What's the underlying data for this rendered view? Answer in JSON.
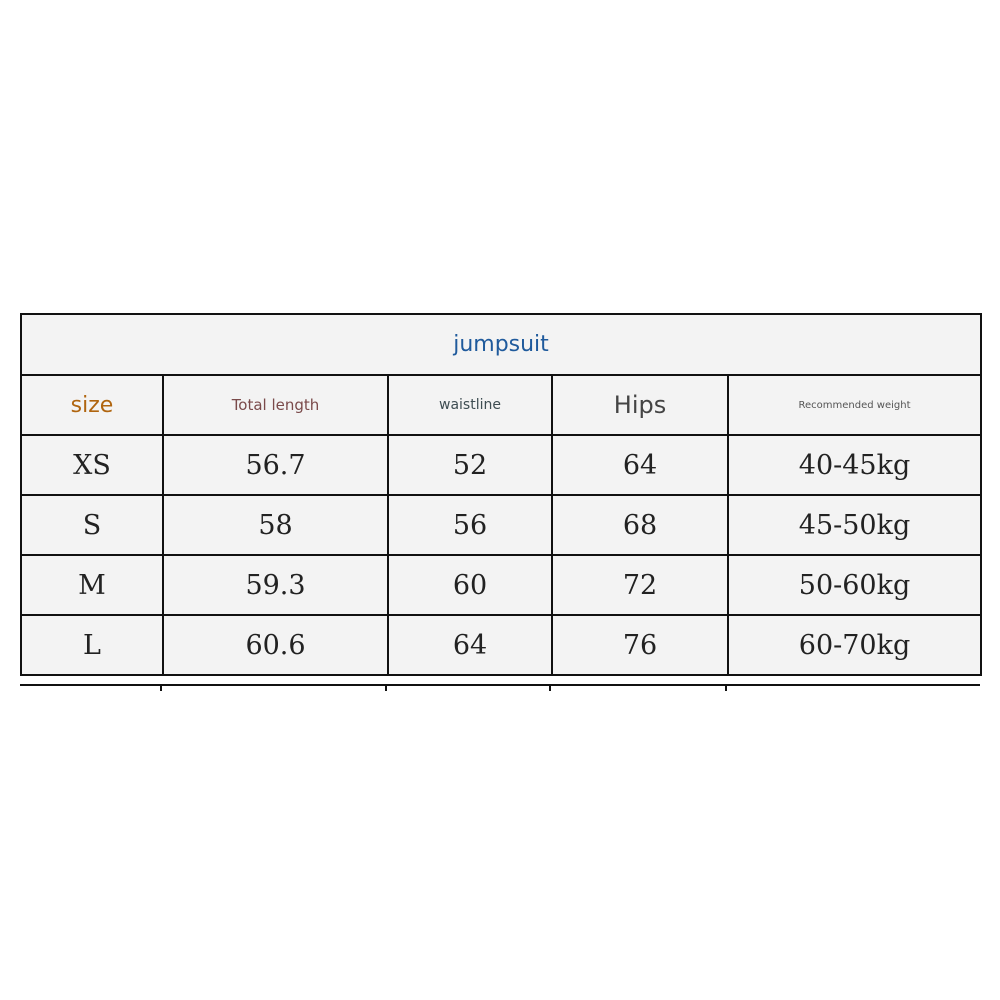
{
  "table": {
    "title": "jumpsuit",
    "headers": [
      "size",
      "Total length",
      "waistline",
      "Hips",
      "Recommended weight"
    ],
    "rows": [
      [
        "XS",
        "56.7",
        "52",
        "64",
        "40-45kg"
      ],
      [
        "S",
        "58",
        "56",
        "68",
        "45-50kg"
      ],
      [
        "M",
        "59.3",
        "60",
        "72",
        "50-60kg"
      ],
      [
        "L",
        "60.6",
        "64",
        "76",
        "60-70kg"
      ]
    ]
  },
  "colors": {
    "title": "#1f5a9c",
    "size_header": "#b0650f",
    "length_header": "#7a4a4a",
    "cell_background": "#f3f3f3"
  }
}
